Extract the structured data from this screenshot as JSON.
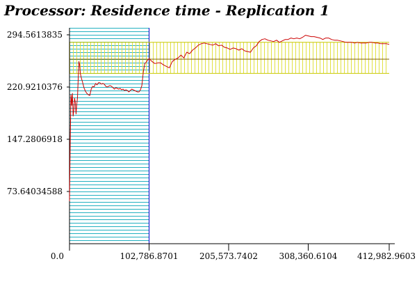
{
  "chart_data": {
    "type": "line",
    "title": "Processor: Residence time - Replication 1",
    "xlabel": "",
    "ylabel": "",
    "xlim": [
      0,
      412982.9603
    ],
    "ylim": [
      0,
      294.5613835
    ],
    "x_tick_labels": [
      "0.0",
      "102,786.8701",
      "205,573.7402",
      "308,360.6104",
      "412,982.9603"
    ],
    "x_tick_values": [
      0,
      102786.8701,
      205573.7402,
      308360.6104,
      412982.9603
    ],
    "y_tick_labels": [
      "294.5613835",
      "220.9210376",
      "147.2806918",
      "73.64034588"
    ],
    "y_tick_values": [
      294.5613835,
      220.9210376,
      147.2806918,
      73.64034588
    ],
    "warmup_region": {
      "x_start": 0,
      "x_end": 102786.8701
    },
    "mean_line": 260.2,
    "confidence_band": [
      240.2,
      284.0
    ],
    "colors": {
      "series": "#cc0000",
      "warmup_hatch": "#22b0c0",
      "warmup_edge": "#0000cc",
      "band_hatch": "#e0e040",
      "band_edge": "#c8c800",
      "mean_line": "#806000",
      "axis": "#000000"
    },
    "series": [
      {
        "points": [
          [
            0,
            60
          ],
          [
            935,
            140
          ],
          [
            1870,
            210
          ],
          [
            2805,
            195
          ],
          [
            3740,
            212
          ],
          [
            4675,
            180
          ],
          [
            5610,
            188
          ],
          [
            6545,
            205
          ],
          [
            7480,
            200
          ],
          [
            8415,
            183
          ],
          [
            9350,
            196
          ],
          [
            10285,
            206
          ],
          [
            11220,
            232
          ],
          [
            12155,
            257
          ],
          [
            13090,
            252
          ],
          [
            14025,
            240
          ],
          [
            14960,
            235
          ],
          [
            16830,
            228
          ],
          [
            18700,
            220
          ],
          [
            20570,
            215
          ],
          [
            22440,
            212
          ],
          [
            24310,
            210
          ],
          [
            26180,
            209
          ],
          [
            28050,
            218
          ],
          [
            29920,
            222
          ],
          [
            31790,
            221
          ],
          [
            33660,
            226
          ],
          [
            35530,
            224
          ],
          [
            37400,
            227
          ],
          [
            39270,
            227
          ],
          [
            41140,
            225
          ],
          [
            43010,
            226
          ],
          [
            44880,
            225
          ],
          [
            46750,
            222
          ],
          [
            48620,
            221
          ],
          [
            50490,
            222
          ],
          [
            52360,
            223
          ],
          [
            54230,
            222
          ],
          [
            56100,
            220
          ],
          [
            57970,
            218
          ],
          [
            59840,
            220
          ],
          [
            61710,
            219
          ],
          [
            63580,
            218
          ],
          [
            65450,
            219
          ],
          [
            67320,
            217
          ],
          [
            69190,
            218
          ],
          [
            71060,
            216
          ],
          [
            72930,
            217
          ],
          [
            74800,
            216
          ],
          [
            76670,
            214
          ],
          [
            78540,
            216
          ],
          [
            80410,
            218
          ],
          [
            82280,
            217
          ],
          [
            84150,
            216
          ],
          [
            86020,
            215
          ],
          [
            87890,
            214
          ],
          [
            89760,
            214
          ],
          [
            91630,
            217
          ],
          [
            93500,
            223
          ],
          [
            95370,
            242
          ],
          [
            97240,
            254
          ],
          [
            99110,
            256
          ],
          [
            100980,
            259
          ],
          [
            102850,
            261
          ],
          [
            106590,
            257
          ],
          [
            110330,
            254
          ],
          [
            114070,
            255
          ],
          [
            117810,
            255
          ],
          [
            121550,
            252
          ],
          [
            125290,
            250
          ],
          [
            129030,
            248
          ],
          [
            132770,
            257
          ],
          [
            136510,
            260
          ],
          [
            140250,
            262
          ],
          [
            143990,
            266
          ],
          [
            147730,
            262
          ],
          [
            151470,
            270
          ],
          [
            155210,
            268
          ],
          [
            158950,
            273
          ],
          [
            162690,
            276
          ],
          [
            166430,
            280
          ],
          [
            170170,
            282
          ],
          [
            173910,
            283
          ],
          [
            177650,
            282
          ],
          [
            181390,
            281
          ],
          [
            185130,
            280
          ],
          [
            188870,
            282
          ],
          [
            192610,
            279
          ],
          [
            196350,
            280
          ],
          [
            200090,
            277
          ],
          [
            203830,
            276
          ],
          [
            207570,
            274
          ],
          [
            211310,
            276
          ],
          [
            215050,
            275
          ],
          [
            218790,
            273
          ],
          [
            222530,
            275
          ],
          [
            226270,
            272
          ],
          [
            230010,
            271
          ],
          [
            233750,
            270
          ],
          [
            237490,
            276
          ],
          [
            241230,
            279
          ],
          [
            244970,
            285
          ],
          [
            248710,
            288
          ],
          [
            252450,
            289
          ],
          [
            256190,
            287
          ],
          [
            259930,
            286
          ],
          [
            263670,
            285
          ],
          [
            267410,
            287
          ],
          [
            271150,
            284
          ],
          [
            274890,
            286
          ],
          [
            278630,
            288
          ],
          [
            282370,
            288
          ],
          [
            286110,
            290
          ],
          [
            289850,
            289
          ],
          [
            293590,
            290
          ],
          [
            297330,
            289
          ],
          [
            301070,
            291
          ],
          [
            304810,
            294
          ],
          [
            308550,
            293
          ],
          [
            312290,
            292
          ],
          [
            316030,
            292
          ],
          [
            319770,
            291
          ],
          [
            323510,
            290
          ],
          [
            327250,
            288
          ],
          [
            330990,
            290
          ],
          [
            334730,
            290
          ],
          [
            338470,
            288
          ],
          [
            342210,
            287
          ],
          [
            345950,
            287
          ],
          [
            349690,
            286
          ],
          [
            353430,
            285
          ],
          [
            357170,
            284
          ],
          [
            360910,
            284
          ],
          [
            364650,
            284
          ],
          [
            368390,
            283
          ],
          [
            372130,
            284
          ],
          [
            375870,
            283
          ],
          [
            379610,
            283
          ],
          [
            383350,
            283
          ],
          [
            387090,
            284
          ],
          [
            390830,
            284
          ],
          [
            394570,
            283
          ],
          [
            398310,
            283
          ],
          [
            402050,
            282
          ],
          [
            405790,
            282
          ],
          [
            409530,
            282
          ],
          [
            412982,
            281
          ]
        ]
      }
    ]
  }
}
